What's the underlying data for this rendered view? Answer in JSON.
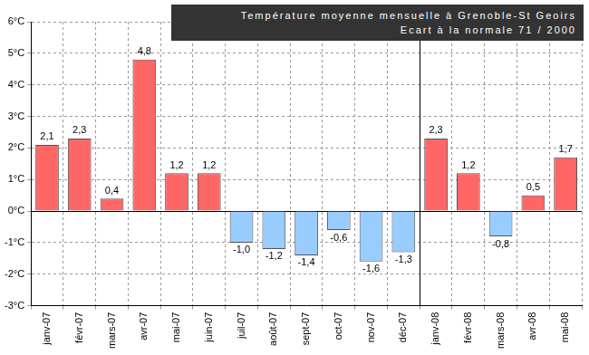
{
  "chart_data": {
    "type": "bar",
    "title": "Température moyenne mensuelle à Grenoble-St Geoirs",
    "subtitle": "Ecart à la normale 71 / 2000",
    "categories": [
      "janv-07",
      "févr-07",
      "mars-07",
      "avr-07",
      "mai-07",
      "juin-07",
      "juil-07",
      "août-07",
      "sept-07",
      "oct-07",
      "nov-07",
      "déc-07",
      "janv-08",
      "févr-08",
      "mars-08",
      "avr-08",
      "mai-08"
    ],
    "values": [
      2.1,
      2.3,
      0.4,
      4.8,
      1.2,
      1.2,
      -1.0,
      -1.2,
      -1.4,
      -0.6,
      -1.6,
      -1.3,
      2.3,
      1.2,
      -0.8,
      0.5,
      1.7
    ],
    "value_labels": [
      "2,1",
      "2,3",
      "0,4",
      "4,8",
      "1,2",
      "1,2",
      "-1,0",
      "-1,2",
      "-1,4",
      "-0,6",
      "-1,6",
      "-1,3",
      "2,3",
      "1,2",
      "-0,8",
      "0,5",
      "1,7"
    ],
    "colors": [
      "#ff6666",
      "#ff6666",
      "#ff6666",
      "#ff6666",
      "#ff6666",
      "#ff6666",
      "#99ccff",
      "#99ccff",
      "#99ccff",
      "#99ccff",
      "#99ccff",
      "#99ccff",
      "#ff6666",
      "#ff6666",
      "#99ccff",
      "#ff6666",
      "#ff6666"
    ],
    "ylim": [
      -3,
      6
    ],
    "yticks": [
      {
        "value": -3,
        "label": "-3°C"
      },
      {
        "value": -2,
        "label": "-2°C"
      },
      {
        "value": -1,
        "label": "-1°C"
      },
      {
        "value": 0,
        "label": "0°C"
      },
      {
        "value": 1,
        "label": "1°C"
      },
      {
        "value": 2,
        "label": "2°C"
      },
      {
        "value": 3,
        "label": "3°C"
      },
      {
        "value": 4,
        "label": "4°C"
      },
      {
        "value": 5,
        "label": "5°C"
      },
      {
        "value": 6,
        "label": "6°C"
      }
    ],
    "grid": true,
    "data_labels": true
  }
}
